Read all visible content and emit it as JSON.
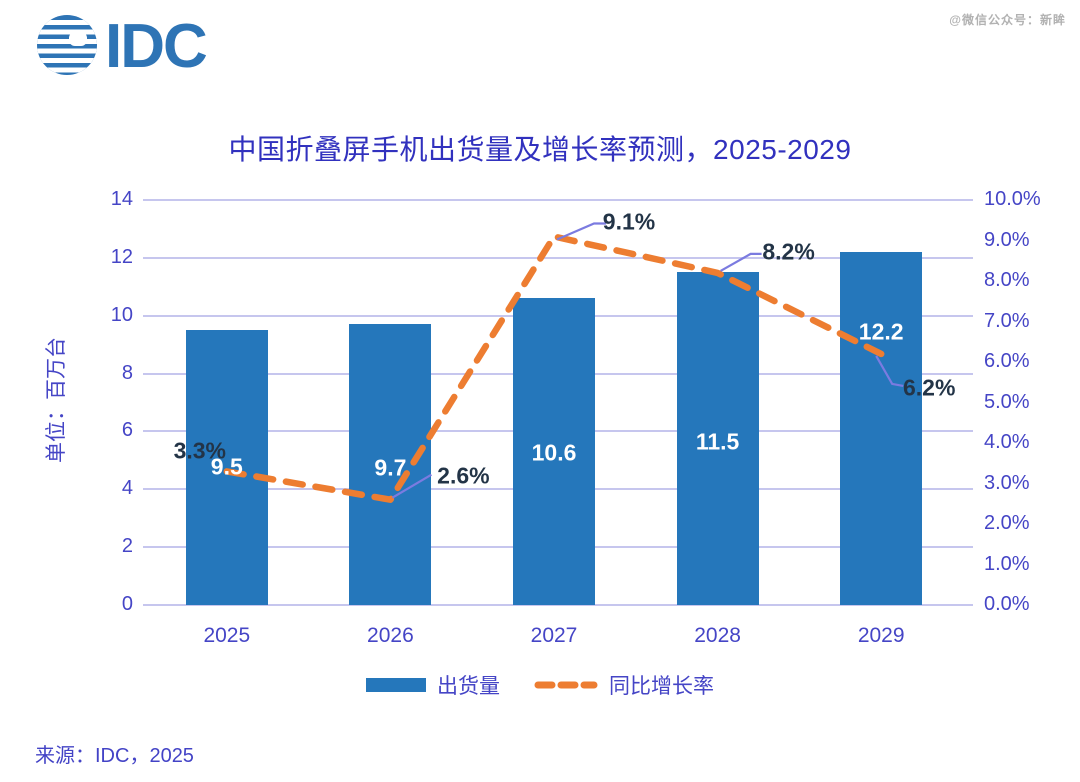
{
  "header": {
    "logo": "IDC",
    "watermark": "@微信公众号：新眸"
  },
  "chart_data": {
    "type": "combo-bar-line",
    "title": "中国折叠屏手机出货量及增长率预测，2025-2029",
    "categories": [
      "2025",
      "2026",
      "2027",
      "2028",
      "2029"
    ],
    "series": [
      {
        "name": "出货量",
        "type": "bar",
        "axis": "left",
        "color": "#2577BB",
        "values": [
          9.5,
          9.7,
          10.6,
          11.5,
          12.2
        ],
        "data_labels": [
          "9.5",
          "9.7",
          "10.6",
          "11.5",
          "12.2"
        ]
      },
      {
        "name": "同比增长率",
        "type": "line",
        "line_style": "dashed",
        "axis": "right",
        "color": "#ED7D31",
        "values": [
          3.3,
          2.6,
          9.1,
          8.2,
          6.2
        ],
        "data_labels": [
          "3.3%",
          "2.6%",
          "9.1%",
          "8.2%",
          "6.2%"
        ]
      }
    ],
    "left_axis": {
      "title": "单位：百万台",
      "min": 0,
      "max": 14,
      "tick_labels": [
        "0",
        "2",
        "4",
        "6",
        "8",
        "10",
        "12",
        "14"
      ]
    },
    "right_axis": {
      "min": 0,
      "max": 10,
      "tick_labels": [
        "0.0%",
        "1.0%",
        "2.0%",
        "3.0%",
        "4.0%",
        "5.0%",
        "6.0%",
        "7.0%",
        "8.0%",
        "9.0%",
        "10.0%"
      ]
    },
    "grid": "horizontal",
    "legend": {
      "position": "bottom",
      "items": [
        {
          "label": "出货量",
          "swatch": "bar"
        },
        {
          "label": "同比增长率",
          "swatch": "dashed-line"
        }
      ]
    },
    "colors": {
      "bar": "#2577BB",
      "line": "#ED7D31",
      "title": "#3131BE",
      "axis_text": "#4545C6",
      "gridline": "#C6C6EE",
      "bar_value_label": "#FFFFFF",
      "pct_label": "#233447",
      "leader_line": "#7B7BE0",
      "logo": "#2E74B5",
      "watermark": "#B2B2B2"
    }
  },
  "footer": {
    "source": "来源：IDC，2025"
  }
}
